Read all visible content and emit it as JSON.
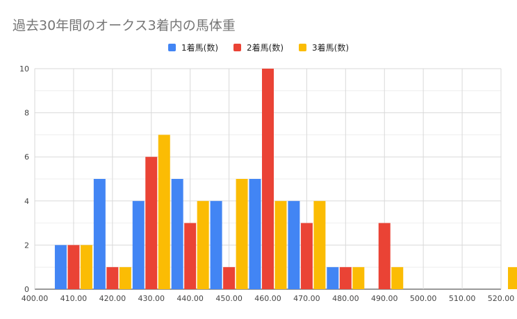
{
  "chart_data": {
    "type": "bar",
    "title": "過去30年間のオークス3着内の馬体重",
    "xlabel": "",
    "ylabel": "",
    "x_ticks": [
      "400.00",
      "410.00",
      "420.00",
      "430.00",
      "440.00",
      "450.00",
      "460.00",
      "470.00",
      "480.00",
      "490.00",
      "500.00",
      "510.00",
      "520.00"
    ],
    "categories": [
      "410",
      "420",
      "430",
      "440",
      "450",
      "460",
      "470",
      "480",
      "490",
      "500",
      "510",
      "520"
    ],
    "series": [
      {
        "name": "1着馬(数)",
        "color": "#4285f4",
        "values": [
          2,
          5,
          4,
          5,
          4,
          5,
          4,
          1,
          0,
          0,
          0,
          0
        ]
      },
      {
        "name": "2着馬(数)",
        "color": "#ea4335",
        "values": [
          2,
          1,
          6,
          3,
          1,
          10,
          3,
          1,
          3,
          0,
          0,
          0
        ]
      },
      {
        "name": "3着馬(数)",
        "color": "#fbbc04",
        "values": [
          2,
          1,
          7,
          4,
          5,
          4,
          4,
          1,
          1,
          0,
          0,
          1
        ]
      }
    ],
    "ylim": [
      0,
      10
    ],
    "y_ticks": [
      "0",
      "2",
      "4",
      "6",
      "8",
      "10"
    ],
    "grid": true,
    "legend": "top-center"
  }
}
